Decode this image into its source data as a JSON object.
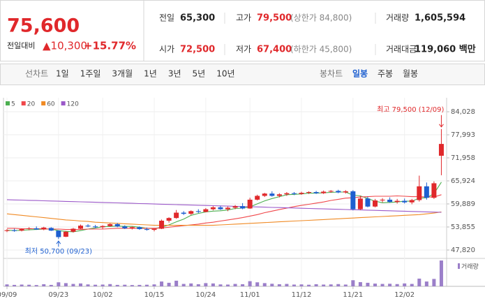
{
  "header": {
    "price": "75,600",
    "change_label": "전일대비",
    "change": "▲10,300",
    "change_rate": "+15.77%",
    "stats": [
      {
        "label": "전일",
        "value": "65,300"
      },
      {
        "label": "고가",
        "value": "79,500",
        "note": "(상한가 84,800)"
      },
      {
        "label": "거래량",
        "value": "1,605,594"
      },
      {
        "label": "시가",
        "value": "72,500"
      },
      {
        "label": "저가",
        "value": "67,400",
        "note": "(하한가 45,800)"
      },
      {
        "label": "거래대금",
        "value": "119,060 백만"
      }
    ]
  },
  "tabs": {
    "line_label": "선차트",
    "line_items": [
      "1일",
      "1주일",
      "3개월",
      "1년",
      "3년",
      "5년",
      "10년"
    ],
    "candle_label": "봉차트",
    "candle_items": [
      "일봉",
      "주봉",
      "월봉"
    ],
    "selected": "일봉"
  },
  "chart_data": {
    "type": "candlestick",
    "categories": [
      "09/09",
      null,
      null,
      null,
      null,
      null,
      null,
      "09/23",
      null,
      null,
      null,
      null,
      null,
      "10/02",
      null,
      null,
      null,
      null,
      null,
      null,
      "10/15",
      null,
      null,
      null,
      null,
      null,
      null,
      "10/24",
      null,
      null,
      null,
      null,
      null,
      "11/01",
      null,
      null,
      null,
      null,
      null,
      null,
      "11/12",
      null,
      null,
      null,
      null,
      null,
      null,
      "11/21",
      null,
      null,
      null,
      null,
      null,
      null,
      "12/02",
      null,
      null,
      null,
      null,
      null
    ],
    "open": [
      52800,
      53000,
      52900,
      53300,
      53500,
      53200,
      53600,
      52900,
      51300,
      52600,
      53400,
      54200,
      54000,
      53800,
      54100,
      54600,
      54000,
      53500,
      53800,
      53300,
      53100,
      53400,
      55500,
      56200,
      57600,
      57300,
      58000,
      57800,
      58500,
      59000,
      58500,
      58900,
      59300,
      58700,
      61000,
      62000,
      62600,
      62000,
      62400,
      62700,
      62500,
      62800,
      63000,
      62700,
      63100,
      63300,
      62900,
      63200,
      58500,
      61300,
      59200,
      60800,
      61000,
      60400,
      60700,
      60300,
      60900,
      64500,
      61500,
      72500
    ],
    "high": [
      53300,
      53400,
      53500,
      53800,
      54000,
      53900,
      53800,
      53000,
      52800,
      53600,
      54500,
      54600,
      54400,
      54300,
      54800,
      54900,
      54300,
      54000,
      54000,
      53700,
      53500,
      55800,
      56400,
      58300,
      58000,
      58200,
      58500,
      58800,
      59300,
      59400,
      59200,
      59600,
      60100,
      61500,
      62300,
      62800,
      63200,
      62700,
      63000,
      63000,
      63100,
      63200,
      63300,
      63400,
      63500,
      63600,
      63500,
      63500,
      62000,
      61800,
      61200,
      61400,
      61600,
      61200,
      61300,
      61200,
      67300,
      65500,
      65800,
      79500
    ],
    "low": [
      52500,
      52600,
      52700,
      53000,
      53100,
      53000,
      52800,
      50700,
      51200,
      52400,
      53300,
      53800,
      53500,
      53400,
      53900,
      53800,
      53300,
      53200,
      53100,
      52900,
      52700,
      53300,
      55000,
      56000,
      57000,
      57000,
      57500,
      57700,
      58200,
      58300,
      58000,
      58500,
      58500,
      58600,
      60800,
      61700,
      61800,
      61600,
      62000,
      62200,
      62300,
      62500,
      62500,
      62500,
      62800,
      62700,
      62600,
      58200,
      58300,
      59000,
      59000,
      60300,
      60200,
      60000,
      60000,
      59800,
      60500,
      61000,
      61200,
      67400
    ],
    "close": [
      53000,
      52800,
      53300,
      53500,
      53200,
      53700,
      52900,
      51200,
      52600,
      53400,
      54200,
      54000,
      53800,
      54100,
      54600,
      54000,
      53500,
      53800,
      53300,
      53100,
      53400,
      55500,
      56200,
      57600,
      57300,
      58000,
      57800,
      58500,
      59000,
      58500,
      58900,
      59300,
      58700,
      61000,
      62000,
      62600,
      62000,
      62400,
      62700,
      62500,
      62800,
      63000,
      62700,
      63100,
      63300,
      62900,
      63200,
      58500,
      61300,
      59200,
      60800,
      61000,
      60400,
      60700,
      60300,
      60900,
      64500,
      61500,
      65300,
      75600
    ],
    "up_color": "#e0282b",
    "down_color": "#1d5fd0",
    "series": [
      {
        "name": "5",
        "color": "#4caf50",
        "values": [
          53000,
          52900,
          53000,
          53100,
          53200,
          53300,
          53300,
          52900,
          52700,
          52600,
          52900,
          53300,
          53600,
          53900,
          54000,
          54100,
          54000,
          54000,
          53800,
          53500,
          53400,
          53800,
          54400,
          55200,
          55900,
          56900,
          57400,
          57800,
          58000,
          58100,
          58300,
          58700,
          58800,
          59100,
          59900,
          60700,
          61300,
          61800,
          62300,
          62400,
          62500,
          62700,
          62700,
          62800,
          62900,
          63000,
          63000,
          62200,
          62000,
          61300,
          60600,
          60200,
          60300,
          60400,
          60600,
          60600,
          61400,
          61500,
          62600,
          65600
        ]
      },
      {
        "name": "20",
        "color": "#f0474a",
        "values": [
          53500,
          53500,
          53400,
          53400,
          53400,
          53400,
          53300,
          53300,
          53200,
          53200,
          53200,
          53300,
          53300,
          53300,
          53400,
          53500,
          53500,
          53500,
          53500,
          53500,
          53500,
          53600,
          53800,
          54000,
          54200,
          54400,
          54600,
          54900,
          55100,
          55400,
          55700,
          56000,
          56300,
          56700,
          57100,
          57600,
          58000,
          58400,
          58800,
          59200,
          59500,
          59800,
          60100,
          60400,
          60800,
          61100,
          61400,
          61500,
          61700,
          61800,
          61900,
          61900,
          61900,
          62000,
          61900,
          61800,
          61800,
          61700,
          61700,
          62300
        ]
      },
      {
        "name": "60",
        "color": "#f08a24",
        "values": [
          57300,
          57100,
          56900,
          56700,
          56500,
          56300,
          56100,
          55900,
          55700,
          55600,
          55400,
          55300,
          55100,
          55000,
          54900,
          54800,
          54700,
          54600,
          54500,
          54400,
          54300,
          54300,
          54300,
          54300,
          54300,
          54300,
          54300,
          54300,
          54300,
          54400,
          54500,
          54600,
          54700,
          54800,
          54900,
          55000,
          55100,
          55200,
          55300,
          55400,
          55500,
          55600,
          55700,
          55800,
          55900,
          56000,
          56100,
          56200,
          56300,
          56400,
          56500,
          56600,
          56700,
          56800,
          56900,
          57000,
          57100,
          57300,
          57500,
          57800
        ]
      },
      {
        "name": "120",
        "color": "#9b59c9",
        "values": [
          61000,
          60940,
          60890,
          60830,
          60780,
          60720,
          60660,
          60610,
          60550,
          60500,
          60440,
          60380,
          60330,
          60270,
          60220,
          60160,
          60100,
          60050,
          59990,
          59940,
          59880,
          59820,
          59770,
          59710,
          59660,
          59600,
          59540,
          59490,
          59430,
          59380,
          59320,
          59260,
          59210,
          59150,
          59100,
          59040,
          58980,
          58930,
          58870,
          58820,
          58760,
          58700,
          58650,
          58590,
          58540,
          58480,
          58420,
          58370,
          58310,
          58260,
          58200,
          58140,
          58090,
          58030,
          57980,
          57920,
          57860,
          57810,
          57750,
          57700
        ]
      }
    ],
    "volume": {
      "name": "거래량",
      "color": "#9b7fc9",
      "values": [
        120000,
        90000,
        110000,
        100000,
        80000,
        130000,
        90000,
        250000,
        200000,
        150000,
        180000,
        120000,
        100000,
        110000,
        140000,
        90000,
        100000,
        80000,
        90000,
        100000,
        120000,
        300000,
        220000,
        350000,
        150000,
        180000,
        130000,
        200000,
        180000,
        120000,
        110000,
        150000,
        130000,
        320000,
        250000,
        200000,
        160000,
        130000,
        150000,
        110000,
        120000,
        100000,
        130000,
        110000,
        120000,
        140000,
        110000,
        380000,
        260000,
        220000,
        170000,
        150000,
        160000,
        140000,
        180000,
        150000,
        480000,
        300000,
        460000,
        1605594
      ]
    },
    "ylim": [
      45990,
      85860
    ],
    "yticks": [
      {
        "value": 84028,
        "label": "84,028"
      },
      {
        "value": 77993,
        "label": "77,993"
      },
      {
        "value": 71958,
        "label": "71,958"
      },
      {
        "value": 65924,
        "label": "65,924"
      },
      {
        "value": 59889,
        "label": "59,889"
      },
      {
        "value": 53855,
        "label": "53,855"
      },
      {
        "value": 47820,
        "label": "47,820"
      }
    ],
    "grid": true,
    "high_annotation": "최고 79,500 (12/09)",
    "low_annotation": "최저 50,700 (09/23)"
  }
}
